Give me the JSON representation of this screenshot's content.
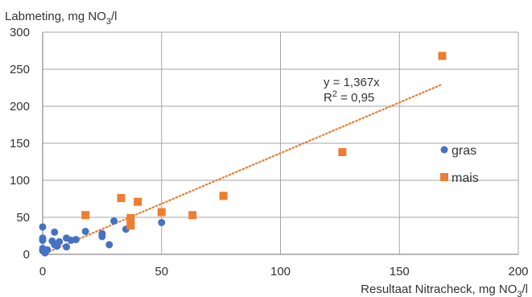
{
  "chart_data": {
    "type": "scatter",
    "ylabel": "Labmeting, mg NO",
    "ylabel_sub": "3",
    "ylabel_suffix": "/l",
    "xlabel": "Resultaat Nitracheck, mg NO",
    "xlabel_sub": "3",
    "xlabel_suffix": "/l",
    "xlim": [
      0,
      200
    ],
    "ylim": [
      0,
      300
    ],
    "xticks": [
      "0",
      "50",
      "100",
      "150",
      "200"
    ],
    "yticks": [
      "0",
      "50",
      "100",
      "150",
      "200",
      "250",
      "300"
    ],
    "grid": true,
    "legend_position": "right",
    "series": [
      {
        "name": "gras",
        "marker": "circle",
        "color": "#4472C4",
        "points": [
          [
            0,
            37
          ],
          [
            0,
            22
          ],
          [
            0,
            19
          ],
          [
            0,
            8
          ],
          [
            0,
            5
          ],
          [
            1,
            2
          ],
          [
            2,
            6
          ],
          [
            4,
            18
          ],
          [
            5,
            30
          ],
          [
            5,
            13
          ],
          [
            6,
            11
          ],
          [
            7,
            17
          ],
          [
            10,
            10
          ],
          [
            10,
            22
          ],
          [
            12,
            19
          ],
          [
            14,
            20
          ],
          [
            18,
            31
          ],
          [
            25,
            28
          ],
          [
            25,
            24
          ],
          [
            28,
            13
          ],
          [
            30,
            45
          ],
          [
            35,
            34
          ],
          [
            50,
            43
          ]
        ]
      },
      {
        "name": "mais",
        "marker": "square",
        "color": "#ED7D31",
        "points": [
          [
            18,
            53
          ],
          [
            33,
            76
          ],
          [
            37,
            49
          ],
          [
            37,
            41
          ],
          [
            37,
            39
          ],
          [
            40,
            71
          ],
          [
            50,
            57
          ],
          [
            63,
            53
          ],
          [
            76,
            79
          ],
          [
            126,
            138
          ],
          [
            168,
            268
          ]
        ]
      }
    ],
    "trendline": {
      "series": "mais",
      "slope": 1.367,
      "color": "#ED7D31",
      "style": "dotted",
      "x_range": [
        0,
        168
      ],
      "equation": "y = 1,367x",
      "r2_label": "R",
      "r2_sup": "2",
      "r2_value": " = 0,95"
    }
  }
}
